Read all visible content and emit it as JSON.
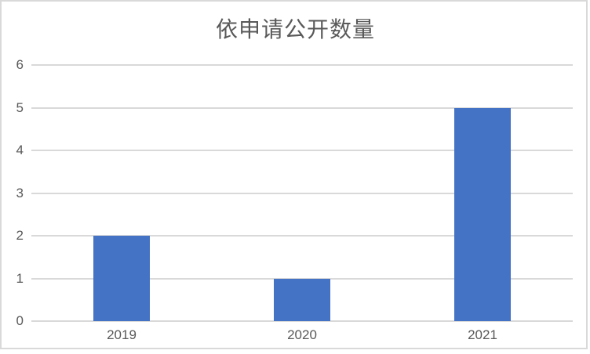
{
  "chart_data": {
    "type": "bar",
    "title": "依申请公开数量",
    "categories": [
      "2019",
      "2020",
      "2021"
    ],
    "values": [
      2,
      1,
      5
    ],
    "ylim": [
      0,
      6
    ],
    "ytick_step": 1,
    "yticks": [
      0,
      1,
      2,
      3,
      4,
      5,
      6
    ],
    "xlabel": "",
    "ylabel": "",
    "grid": true,
    "legend": false,
    "bar_color": "#4472C4",
    "gridline_color": "#D9D9D9",
    "axis_line_color": "#D9D9D9",
    "tick_label_color": "#595959",
    "title_color": "#595959",
    "frame_border_color": "#D9D9D9"
  }
}
